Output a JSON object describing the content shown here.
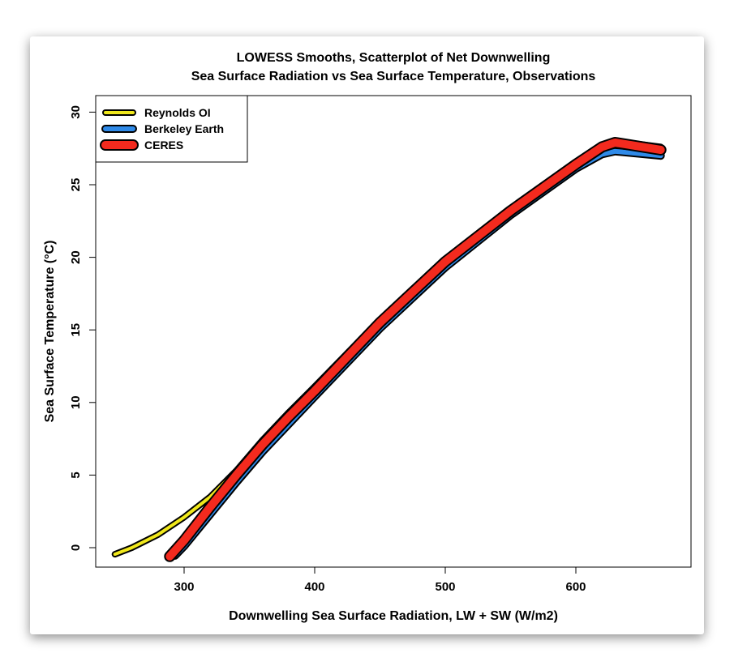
{
  "chart_data": {
    "type": "line",
    "title": [
      "LOWESS Smooths, Scatterplot of Net Downwelling",
      "Sea Surface Radiation vs Sea Surface Temperature, Observations"
    ],
    "xlabel": "Downwelling Sea Surface Radiation, LW + SW (W/m2)",
    "ylabel": "Sea Surface Temperature (°C)",
    "xlim": [
      240,
      672
    ],
    "ylim": [
      -1,
      31
    ],
    "xticks": [
      300,
      400,
      500,
      600
    ],
    "yticks": [
      0,
      5,
      10,
      15,
      20,
      25,
      30
    ],
    "grid": false,
    "legend": "top-left",
    "series": [
      {
        "name": "Reynolds OI",
        "color": "#f0e81c",
        "points": [
          [
            247,
            -0.45
          ],
          [
            260,
            0
          ],
          [
            280,
            0.9
          ],
          [
            300,
            2.1
          ],
          [
            320,
            3.5
          ],
          [
            340,
            5.3
          ],
          [
            360,
            7.4
          ],
          [
            380,
            9.3
          ],
          [
            400,
            11.1
          ],
          [
            450,
            15.7
          ],
          [
            500,
            19.9
          ],
          [
            550,
            23.1
          ],
          [
            600,
            26.5
          ],
          [
            620,
            27.7
          ],
          [
            630,
            28.0
          ],
          [
            665,
            27.6
          ]
        ]
      },
      {
        "name": "Berkeley Earth",
        "color": "#2f8ae8",
        "points": [
          [
            293,
            -0.55
          ],
          [
            300,
            0.1
          ],
          [
            320,
            2.3
          ],
          [
            340,
            4.5
          ],
          [
            360,
            6.6
          ],
          [
            380,
            8.5
          ],
          [
            400,
            10.4
          ],
          [
            450,
            15.1
          ],
          [
            500,
            19.3
          ],
          [
            550,
            22.9
          ],
          [
            600,
            26.1
          ],
          [
            620,
            27.1
          ],
          [
            630,
            27.3
          ],
          [
            665,
            27.0
          ]
        ]
      },
      {
        "name": "CERES",
        "color": "#f32a1e",
        "points": [
          [
            289,
            -0.6
          ],
          [
            300,
            0.5
          ],
          [
            320,
            2.8
          ],
          [
            340,
            5.0
          ],
          [
            360,
            7.1
          ],
          [
            380,
            9.0
          ],
          [
            400,
            10.8
          ],
          [
            450,
            15.5
          ],
          [
            500,
            19.7
          ],
          [
            550,
            23.2
          ],
          [
            600,
            26.4
          ],
          [
            620,
            27.6
          ],
          [
            630,
            27.9
          ],
          [
            665,
            27.4
          ]
        ]
      }
    ]
  }
}
